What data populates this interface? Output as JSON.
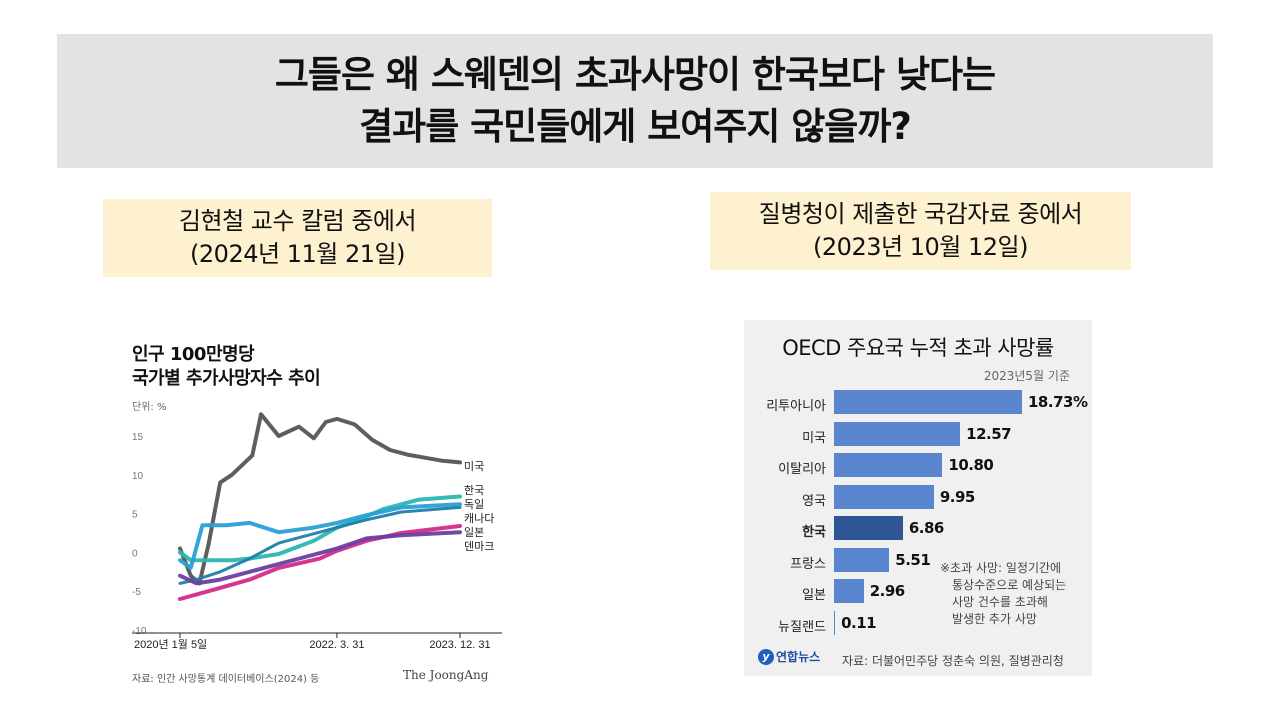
{
  "headline": {
    "line1": "그들은 왜 스웨덴의 초과사망이 한국보다 낮다는",
    "line2": "결과를 국민들에게 보여주지 않을까?"
  },
  "left_label": {
    "line1": "김현철 교수 칼럼 중에서",
    "line2": "(2024년 11월 21일)"
  },
  "right_label": {
    "line1": "질병청이 제출한 국감자료 중에서",
    "line2": "(2023년 10월 12일)"
  },
  "left_chart_text": {
    "title1": "인구 100만명당",
    "title2": "국가별 추가사망자수 추이",
    "unit": "단위: %",
    "source": "자료: 인간 사망통계 데이터베이스(2024) 등",
    "brand": "The JoongAng"
  },
  "right_chart_text": {
    "title": "OECD 주요국 누적 초과 사망률",
    "date": "2023년5월 기준",
    "note_line1": "※초과 사망: 일정기간에",
    "note_line2": "통상수준으로 예상되는",
    "note_line3": "사망 건수를 초과해",
    "note_line4": "발생한 추가 사망",
    "logo": "연합뉴스",
    "logo_mark": "y",
    "source": "자료: 더불어민주당 정춘숙 의원, 질병관리청"
  },
  "chart_data": [
    {
      "type": "line",
      "title": "인구 100만명당 국가별 추가사망자수 추이",
      "ylabel": "단위: %",
      "ylim": [
        -10,
        15
      ],
      "yticks": [
        "15",
        "10",
        "5",
        "0",
        "-5",
        "-10"
      ],
      "x_labels": [
        "2020년 1월 5일",
        "2022. 3. 31",
        "2023. 12. 31"
      ],
      "x_range": [
        "2020-01-05",
        "2023-12-31"
      ],
      "series": [
        {
          "name": "미국",
          "color": "#555555",
          "x": [
            "2020-01-05",
            "2020-03-01",
            "2020-04-15",
            "2020-06-01",
            "2020-08-01",
            "2020-10-01",
            "2021-01-15",
            "2021-03-01",
            "2021-06-01",
            "2021-09-15",
            "2021-12-01",
            "2022-02-01",
            "2022-03-31",
            "2022-07-01",
            "2022-10-01",
            "2023-01-01",
            "2023-04-01",
            "2023-07-01",
            "2023-10-01",
            "2023-12-31"
          ],
          "y": [
            0.5,
            -3,
            -4,
            1,
            9,
            10,
            12.5,
            17.8,
            15,
            16.2,
            14.7,
            16.8,
            17.2,
            16.5,
            14.5,
            13.2,
            12.6,
            12.2,
            11.8,
            11.6
          ]
        },
        {
          "name": "한국",
          "color": "#2bb6b0",
          "x": [
            "2020-01-05",
            "2020-03-01",
            "2020-06-01",
            "2020-10-01",
            "2021-01-01",
            "2021-06-01",
            "2021-12-01",
            "2022-03-31",
            "2022-07-01",
            "2022-12-01",
            "2023-06-01",
            "2023-12-31"
          ],
          "y": [
            0,
            -1,
            -1,
            -1,
            -0.8,
            -0.2,
            1.5,
            3.2,
            4,
            5.6,
            6.8,
            7.2
          ]
        },
        {
          "name": "독일",
          "color": "#2a9fd6",
          "x": [
            "2020-01-05",
            "2020-03-01",
            "2020-05-01",
            "2020-09-01",
            "2021-01-01",
            "2021-06-01",
            "2021-12-01",
            "2022-03-31",
            "2022-09-01",
            "2023-03-01",
            "2023-12-31"
          ],
          "y": [
            -1,
            -2,
            3.5,
            3.5,
            3.8,
            2.6,
            3.2,
            3.8,
            4.8,
            5.8,
            6.2
          ]
        },
        {
          "name": "캐나다",
          "color": "#1e7fa8",
          "x": [
            "2020-01-05",
            "2020-04-01",
            "2020-08-01",
            "2021-01-01",
            "2021-06-01",
            "2022-03-31",
            "2022-09-01",
            "2023-03-01",
            "2023-12-31"
          ],
          "y": [
            -4,
            -3.5,
            -2.5,
            -0.8,
            1.2,
            3.2,
            4.2,
            5.2,
            5.8
          ]
        },
        {
          "name": "일본",
          "color": "#d42a8a",
          "x": [
            "2020-01-05",
            "2020-06-01",
            "2021-01-01",
            "2021-06-01",
            "2022-01-01",
            "2022-03-31",
            "2022-09-01",
            "2023-03-01",
            "2023-12-31"
          ],
          "y": [
            -6,
            -5,
            -3.5,
            -2,
            -0.8,
            0.2,
            1.5,
            2.5,
            3.4
          ]
        },
        {
          "name": "덴마크",
          "color": "#6a3fa0",
          "x": [
            "2020-01-05",
            "2020-04-01",
            "2020-08-01",
            "2021-01-01",
            "2021-06-01",
            "2022-03-31",
            "2022-09-01",
            "2023-03-01",
            "2023-12-31"
          ],
          "y": [
            -3,
            -4,
            -3.5,
            -2.5,
            -1.5,
            0.5,
            1.8,
            2.2,
            2.6
          ]
        }
      ]
    },
    {
      "type": "bar",
      "title": "OECD 주요국 누적 초과 사망률",
      "categories": [
        "리투아니아",
        "미국",
        "이탈리아",
        "영국",
        "한국",
        "프랑스",
        "일본",
        "뉴질랜드"
      ],
      "values": [
        18.73,
        12.57,
        10.8,
        9.95,
        6.86,
        5.51,
        2.96,
        0.11
      ],
      "labels": [
        "18.73%",
        "12.57",
        "10.80",
        "9.95",
        "6.86",
        "5.51",
        "2.96",
        "0.11"
      ],
      "highlight": "한국",
      "colors": {
        "default": "#5a86cf",
        "highlight": "#2f5597"
      },
      "xlim": [
        0,
        18.73
      ]
    }
  ]
}
